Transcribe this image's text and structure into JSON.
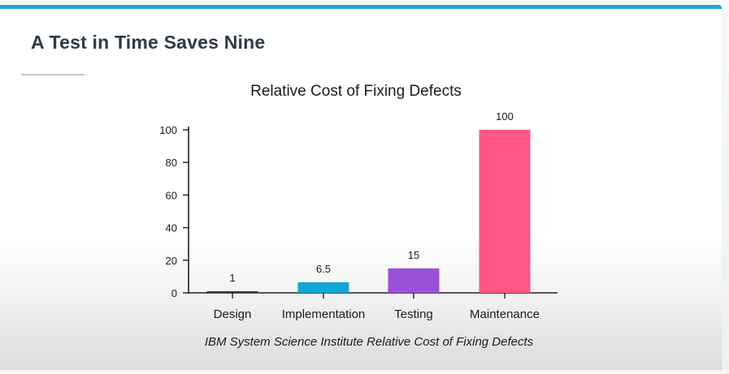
{
  "slide": {
    "title": "A Test in Time Saves Nine"
  },
  "colors": {
    "accent_bar": "#1ea9d6",
    "axis": "#222222",
    "text": "#1b1b1b",
    "title": "#2e3a46"
  },
  "chart_data": {
    "type": "bar",
    "title": "Relative Cost of Fixing Defects",
    "caption": "IBM System Science Institute Relative Cost of Fixing Defects",
    "categories": [
      "Design",
      "Implementation",
      "Testing",
      "Maintenance"
    ],
    "values": [
      1,
      6.5,
      15,
      100
    ],
    "data_labels": [
      "1",
      "6.5",
      "15",
      "100"
    ],
    "bar_colors": [
      "#2c3a48",
      "#14a6d5",
      "#9a4fd8",
      "#ff5683"
    ],
    "yticks": [
      0,
      20,
      40,
      60,
      80,
      100
    ],
    "ylim": [
      0,
      100
    ],
    "xlabel": "",
    "ylabel": "",
    "grid": false,
    "legend": false
  }
}
